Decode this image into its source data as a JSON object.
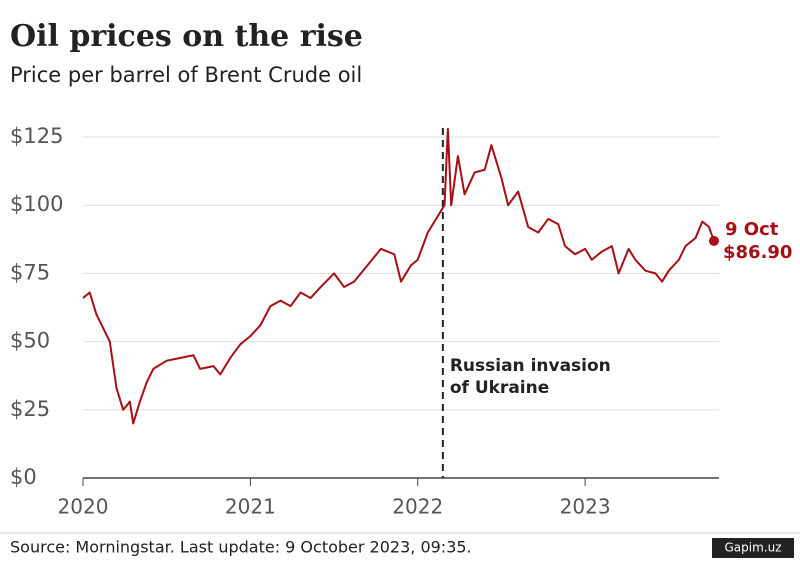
{
  "chart_data": {
    "type": "line",
    "title": "Oil prices on the rise",
    "subtitle": "Price per barrel of Brent Crude oil",
    "source": "Source: Morningstar. Last update:  9 October 2023, 09:35.",
    "watermark": "Gapim.uz",
    "x": [
      2020.0,
      2020.04,
      2020.08,
      2020.12,
      2020.16,
      2020.2,
      2020.24,
      2020.28,
      2020.3,
      2020.34,
      2020.38,
      2020.42,
      2020.5,
      2020.58,
      2020.66,
      2020.7,
      2020.78,
      2020.82,
      2020.88,
      2020.94,
      2021.0,
      2021.06,
      2021.12,
      2021.18,
      2021.24,
      2021.3,
      2021.36,
      2021.42,
      2021.5,
      2021.56,
      2021.62,
      2021.7,
      2021.78,
      2021.86,
      2021.9,
      2021.96,
      2022.0,
      2022.06,
      2022.12,
      2022.16,
      2022.18,
      2022.2,
      2022.24,
      2022.28,
      2022.34,
      2022.4,
      2022.44,
      2022.5,
      2022.54,
      2022.6,
      2022.66,
      2022.72,
      2022.78,
      2022.84,
      2022.88,
      2022.94,
      2023.0,
      2023.04,
      2023.1,
      2023.16,
      2023.2,
      2023.26,
      2023.3,
      2023.36,
      2023.42,
      2023.46,
      2023.5,
      2023.56,
      2023.6,
      2023.66,
      2023.7,
      2023.74,
      2023.77
    ],
    "series": [
      {
        "name": "Brent Crude",
        "color": "#a50f15",
        "values": [
          66,
          68,
          60,
          55,
          50,
          33,
          25,
          28,
          20,
          28,
          35,
          40,
          43,
          44,
          45,
          40,
          41,
          38,
          44,
          49,
          52,
          56,
          63,
          65,
          63,
          68,
          66,
          70,
          75,
          70,
          72,
          78,
          84,
          82,
          72,
          78,
          80,
          90,
          96,
          100,
          128,
          100,
          118,
          104,
          112,
          113,
          122,
          110,
          100,
          105,
          92,
          90,
          95,
          93,
          85,
          82,
          84,
          80,
          83,
          85,
          75,
          84,
          80,
          76,
          75,
          72,
          76,
          80,
          85,
          88,
          94,
          92,
          86.9
        ]
      }
    ],
    "end_marker": {
      "x": 2023.77,
      "value": 86.9,
      "date_label": "9 Oct",
      "value_label": "$86.90"
    },
    "annotation": {
      "x": 2022.15,
      "lines": [
        "Russian invasion",
        "of Ukraine"
      ]
    },
    "xlim": [
      2020,
      2023.8
    ],
    "xticks": [
      2020,
      2021,
      2022,
      2023
    ],
    "ylim": [
      0,
      125
    ],
    "yticks": [
      {
        "value": 0,
        "label": "$0"
      },
      {
        "value": 25,
        "label": "$25"
      },
      {
        "value": 50,
        "label": "$50"
      },
      {
        "value": 75,
        "label": "$75"
      },
      {
        "value": 100,
        "label": "$100"
      },
      {
        "value": 125,
        "label": "$125"
      }
    ],
    "grid": true
  }
}
